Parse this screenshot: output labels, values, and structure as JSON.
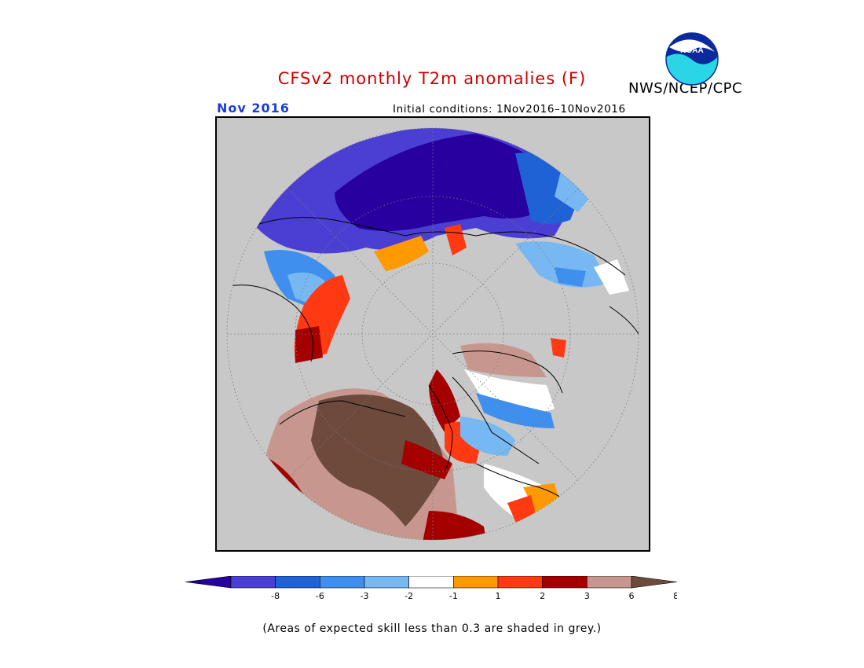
{
  "title": "CFSv2 monthly T2m anomalies (F)",
  "agency": "NWS/NCEP/CPC",
  "valid_month": "Nov 2016",
  "initial_conditions": "Initial conditions: 1Nov2016–10Nov2016",
  "logo_text": "NOAA",
  "footnote": "(Areas of expected skill less than 0.3 are shaded in grey.)",
  "colors": {
    "title": "#cc0000",
    "valid_month": "#1a3fd6",
    "no_skill": "#c8c8c8"
  },
  "legend": {
    "bins": [
      {
        "color": "#2800a0"
      },
      {
        "color": "#4b3fd3"
      },
      {
        "color": "#1f62d6"
      },
      {
        "color": "#3e8fee"
      },
      {
        "color": "#78b8f2"
      },
      {
        "color": "#ffffff"
      },
      {
        "color": "#ff9900"
      },
      {
        "color": "#ff3a12"
      },
      {
        "color": "#a50000"
      },
      {
        "color": "#c7978f"
      },
      {
        "color": "#6e4a3c"
      }
    ],
    "ticks": [
      "-8",
      "-6",
      "-3",
      "-2",
      "-1",
      "1",
      "2",
      "3",
      "6",
      "8"
    ]
  }
}
